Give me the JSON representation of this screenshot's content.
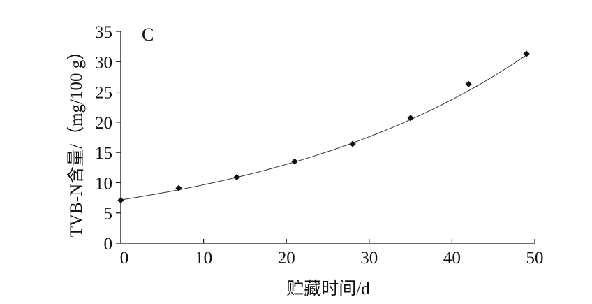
{
  "chart_data": {
    "type": "scatter",
    "panel_label": "C",
    "xlabel": "贮藏时间/d",
    "ylabel": "TVB-N含量/（mg/100 g）",
    "xlim": [
      0,
      50
    ],
    "ylim": [
      0,
      35
    ],
    "xticks": [
      0,
      10,
      20,
      30,
      40,
      50
    ],
    "yticks": [
      0,
      5,
      10,
      15,
      20,
      25,
      30,
      35
    ],
    "grid": false,
    "series": [
      {
        "marker": "diamond",
        "color": "#111111",
        "x": [
          0,
          7,
          14,
          21,
          28,
          35,
          42,
          49
        ],
        "y": [
          7.1,
          9.1,
          10.9,
          13.5,
          16.4,
          20.7,
          26.3,
          31.3
        ]
      }
    ],
    "trendline": {
      "type": "exponential",
      "color": "#333333",
      "x_range": [
        0,
        49
      ],
      "y_start": 7.15,
      "y_end": 31.1
    }
  }
}
